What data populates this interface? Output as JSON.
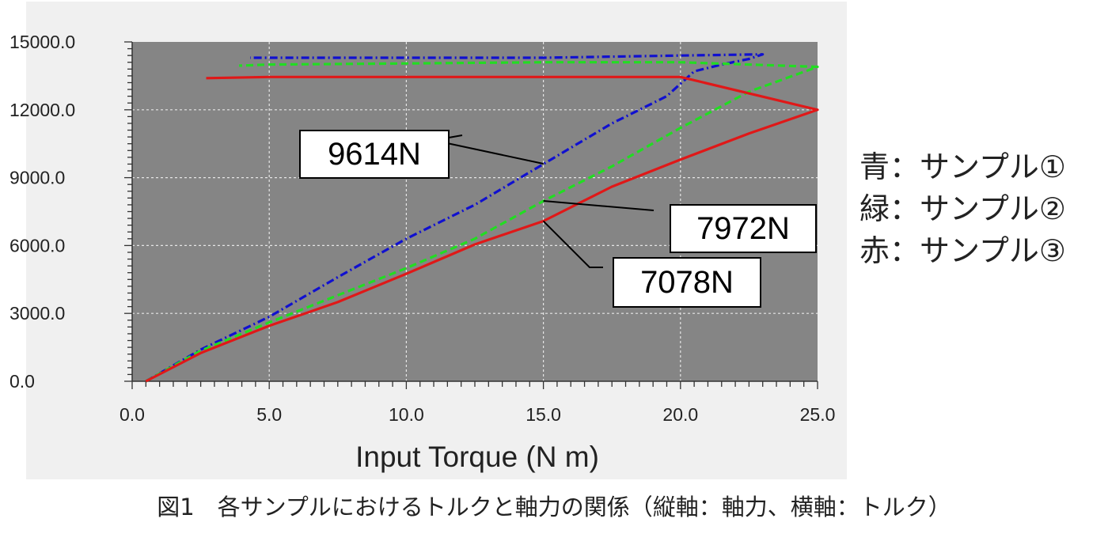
{
  "chart_data": {
    "type": "line",
    "xlabel": "Input Torque (N m)",
    "ylabel": "",
    "xlim": [
      0,
      25
    ],
    "ylim": [
      0,
      15000
    ],
    "x_ticks": [
      "0.0",
      "5.0",
      "10.0",
      "15.0",
      "20.0",
      "25.0"
    ],
    "y_ticks": [
      "0.0",
      "3000.0",
      "6000.0",
      "9000.0",
      "12000.0",
      "15000.0"
    ],
    "grid": true,
    "series": [
      {
        "name": "サンプル①",
        "color": "#1010d0",
        "style": "dashdot",
        "x": [
          0.5,
          2.5,
          5,
          7.5,
          10,
          12.5,
          15,
          17.5,
          19.5,
          20.5,
          21.5,
          22.5,
          23.0,
          20.0,
          15.0,
          10.0,
          5.0,
          4.3
        ],
        "y": [
          0,
          1400,
          2850,
          4600,
          6300,
          7800,
          9600,
          11400,
          12600,
          13700,
          14000,
          14250,
          14450,
          14400,
          14300,
          14300,
          14300,
          14300
        ]
      },
      {
        "name": "サンプル②",
        "color": "#22dd22",
        "style": "dashed",
        "x": [
          0.5,
          2.5,
          5,
          7.5,
          10,
          12.5,
          15,
          17.5,
          20,
          22.5,
          25,
          20,
          15,
          10,
          5,
          3.9
        ],
        "y": [
          0,
          1350,
          2600,
          3800,
          5000,
          6300,
          7970,
          9500,
          11200,
          12800,
          13900,
          14100,
          14100,
          14050,
          14000,
          13950
        ]
      },
      {
        "name": "サンプル③",
        "color": "#e01818",
        "style": "solid",
        "x": [
          0.5,
          2.5,
          5,
          7.5,
          10,
          12.5,
          15,
          17.5,
          20,
          22.5,
          25,
          20,
          15,
          10,
          5,
          2.7
        ],
        "y": [
          0,
          1250,
          2450,
          3500,
          4750,
          6050,
          7080,
          8600,
          9800,
          10950,
          12000,
          13450,
          13450,
          13450,
          13450,
          13400
        ]
      }
    ],
    "annotations": [
      {
        "text": "9614N",
        "x": 15.0,
        "y": 9614
      },
      {
        "text": "7972N",
        "x": 15.0,
        "y": 7972
      },
      {
        "text": "7078N",
        "x": 15.0,
        "y": 7078
      }
    ]
  },
  "legend": {
    "line1": "青：サンプル①",
    "line2": "緑：サンプル②",
    "line3": "赤：サンプル③"
  },
  "caption": "図1　各サンプルにおけるトルクと軸力の関係（縦軸：軸力、横軸：トルク）",
  "colors": {
    "plot_background": "#858585",
    "panel_background": "#f0f0f0"
  }
}
